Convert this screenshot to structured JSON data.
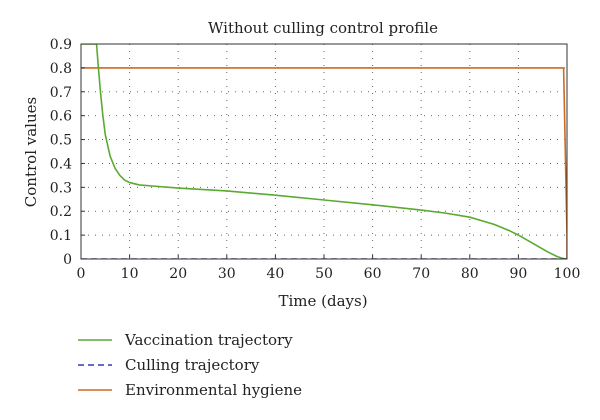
{
  "chart_data": {
    "type": "line",
    "title": "Without culling control profile",
    "xlabel": "Time (days)",
    "ylabel": "Control values",
    "xlim": [
      0,
      100
    ],
    "ylim": [
      0,
      0.9
    ],
    "xticks": [
      0,
      10,
      20,
      30,
      40,
      50,
      60,
      70,
      80,
      90,
      100
    ],
    "yticks": [
      0,
      0.1,
      0.2,
      0.3,
      0.4,
      0.5,
      0.6,
      0.7,
      0.8,
      0.9
    ],
    "xtick_labels": [
      "0",
      "10",
      "20",
      "30",
      "40",
      "50",
      "60",
      "70",
      "80",
      "90",
      "100"
    ],
    "ytick_labels": [
      "0",
      "0.1",
      "0.2",
      "0.3",
      "0.4",
      "0.5",
      "0.6",
      "0.7",
      "0.8",
      "0.9"
    ],
    "grid": true,
    "legend_position": "bottom-left, below plot",
    "series": [
      {
        "name": "Vaccination trajectory",
        "color": "#5aaa32",
        "style": "solid",
        "x": [
          0,
          3.2,
          3.5,
          4,
          4.5,
          5,
          6,
          7,
          8,
          9,
          10,
          12,
          15,
          20,
          30,
          40,
          50,
          60,
          70,
          75,
          80,
          85,
          88,
          90,
          93,
          96,
          98,
          99,
          100
        ],
        "y": [
          0.9,
          0.9,
          0.82,
          0.7,
          0.6,
          0.52,
          0.43,
          0.38,
          0.35,
          0.33,
          0.32,
          0.31,
          0.305,
          0.297,
          0.285,
          0.267,
          0.247,
          0.227,
          0.205,
          0.192,
          0.175,
          0.145,
          0.12,
          0.1,
          0.065,
          0.03,
          0.01,
          0.003,
          0
        ]
      },
      {
        "name": "Culling trajectory",
        "color": "#3a3aa8",
        "style": "dashed",
        "x": [
          0,
          100
        ],
        "y": [
          0,
          0
        ]
      },
      {
        "name": "Environmental hygiene",
        "color": "#d2691e",
        "style": "solid",
        "x": [
          0,
          99.3,
          100,
          100
        ],
        "y": [
          0.8,
          0.8,
          0.1,
          0
        ]
      }
    ]
  }
}
